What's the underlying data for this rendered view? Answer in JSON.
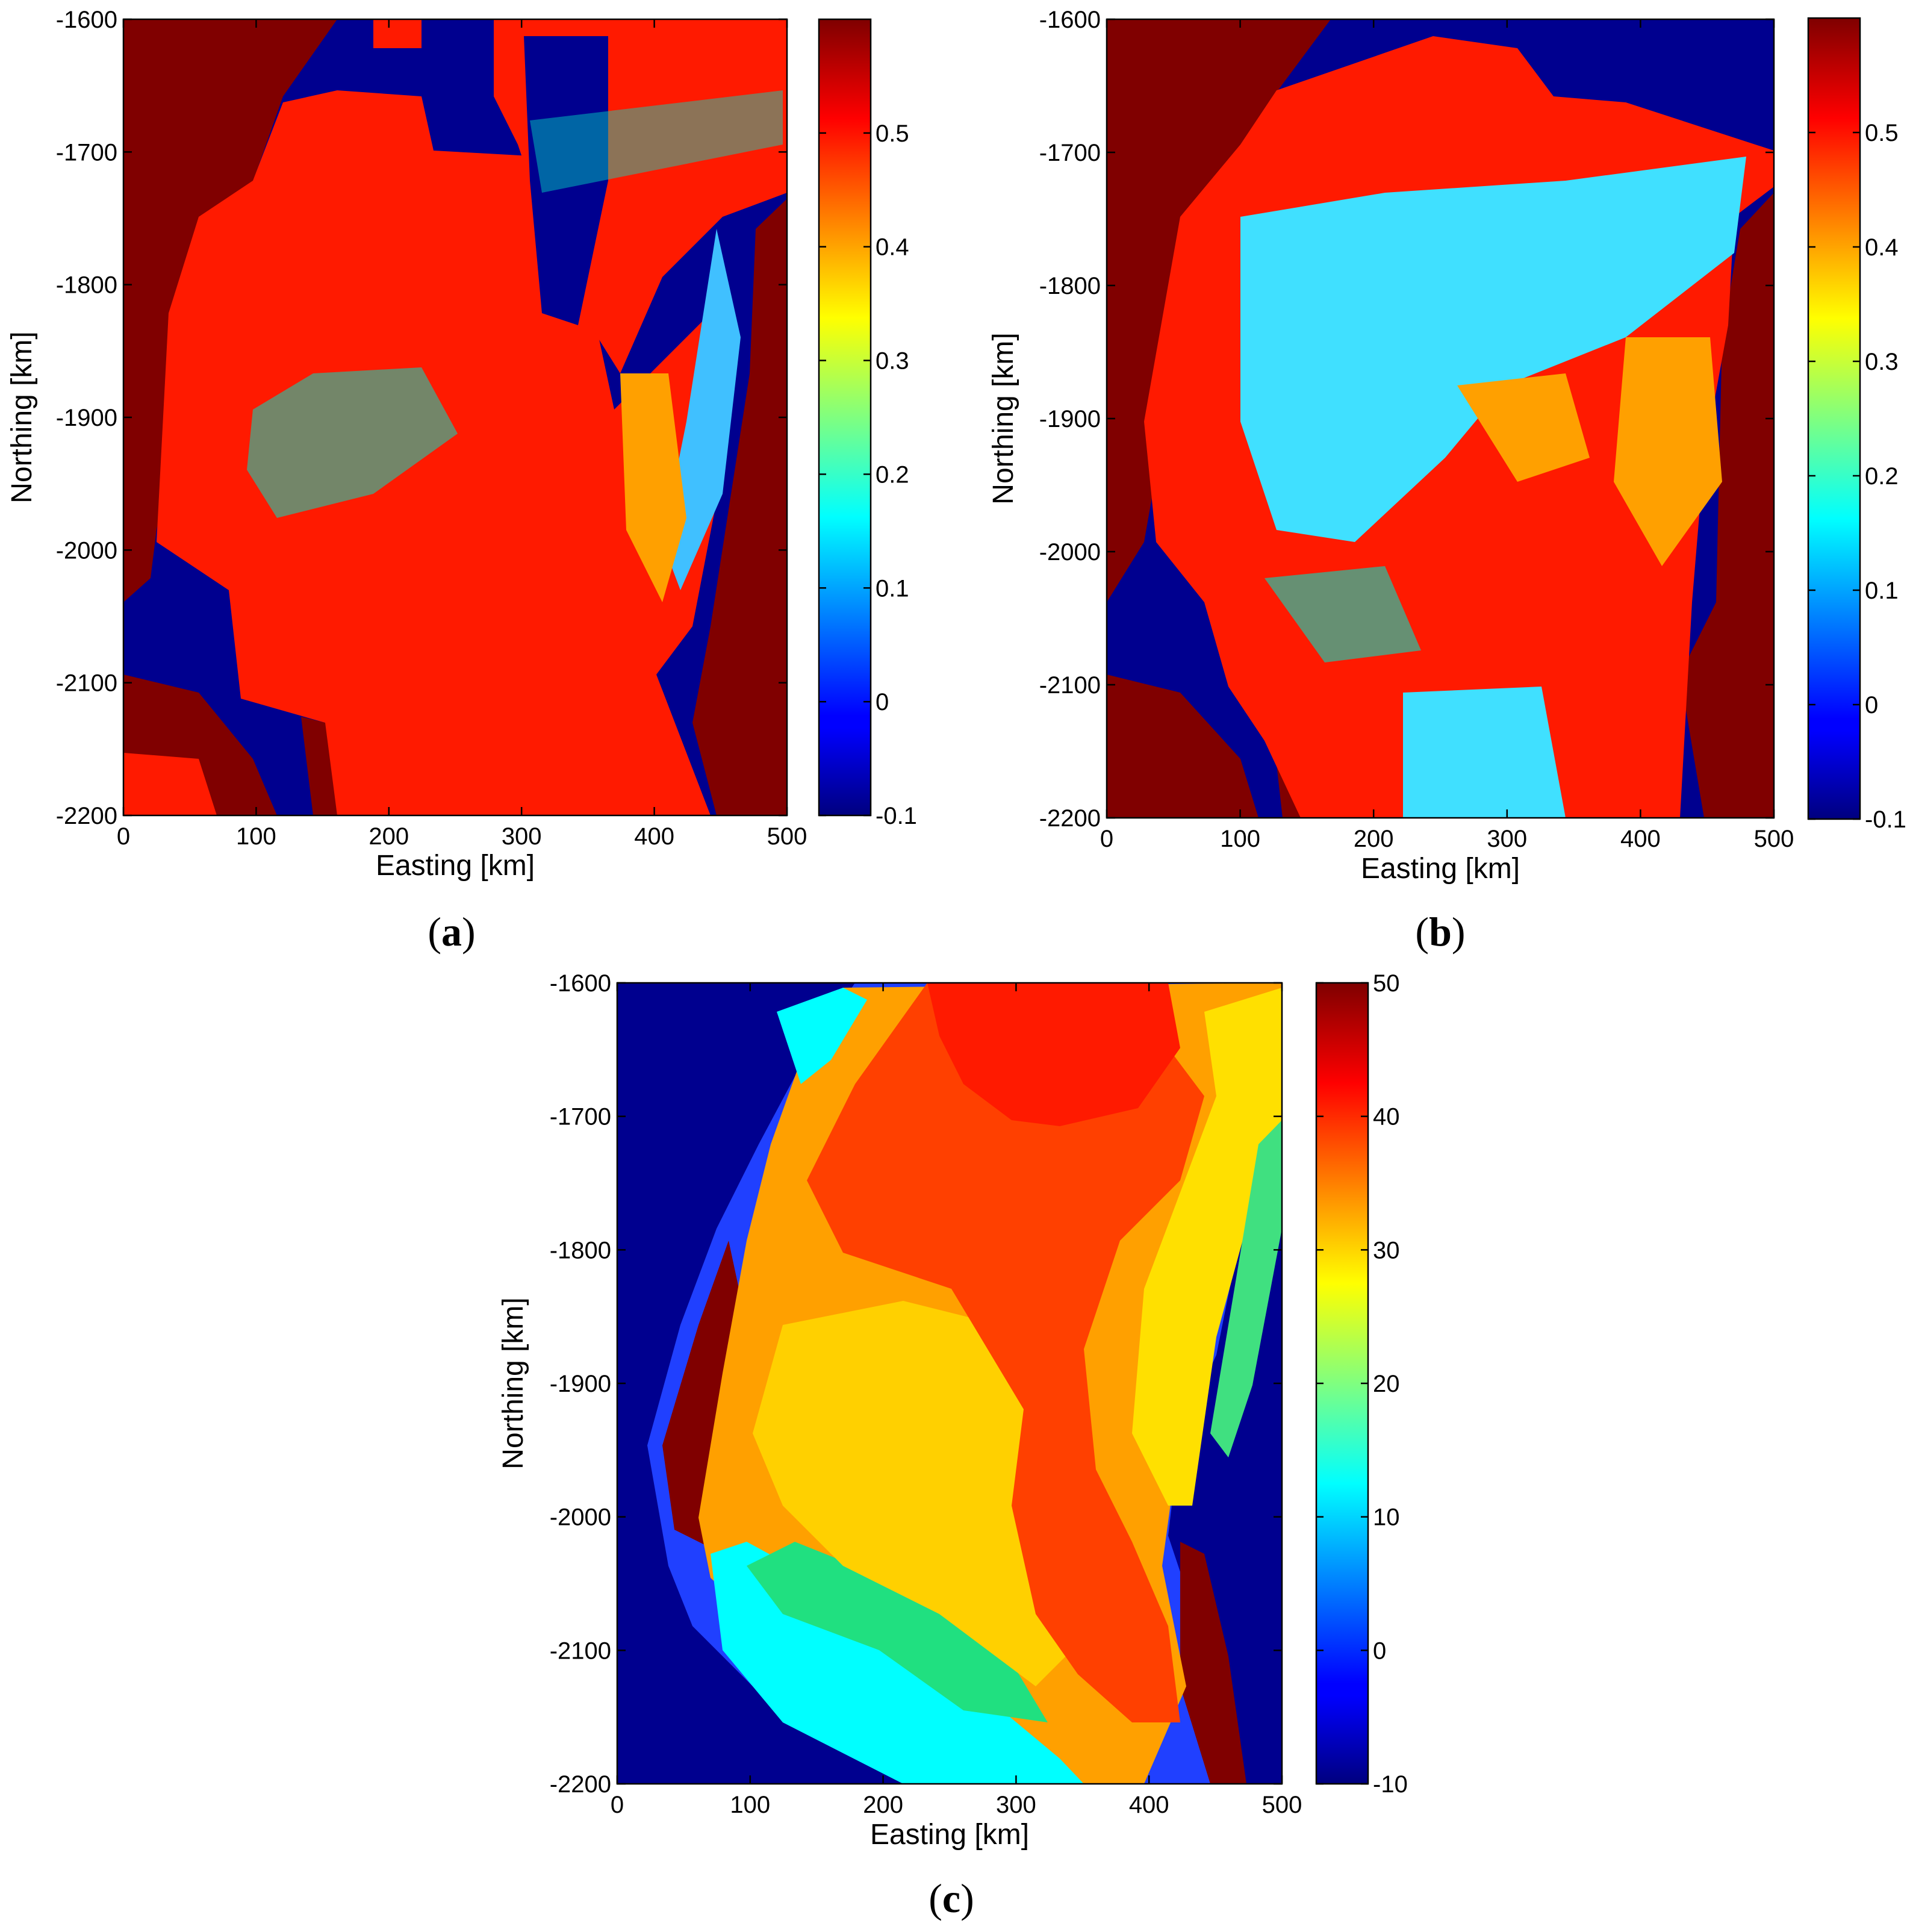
{
  "chart_data": [
    {
      "type": "heatmap",
      "panel_label": {
        "open": "(",
        "letter": "a",
        "close": ")"
      },
      "xlabel": "Easting [km]",
      "ylabel": "Northing [km]",
      "xlim": [
        0,
        500
      ],
      "ylim": [
        -2200,
        -1600
      ],
      "xticks": [
        "0",
        "100",
        "200",
        "300",
        "400",
        "500"
      ],
      "yticks": [
        "-1600",
        "-1700",
        "-1800",
        "-1900",
        "-2000",
        "-2100",
        "-2200"
      ],
      "colorbar": {
        "range": [
          -0.1,
          0.6
        ],
        "ticks": [
          "0.5",
          "0.4",
          "0.3",
          "0.2",
          "0.1",
          "0",
          "-0.1"
        ],
        "tick_values": [
          0.5,
          0.4,
          0.3,
          0.2,
          0.1,
          0,
          -0.1
        ],
        "colormap": "jet"
      }
    },
    {
      "type": "heatmap",
      "panel_label": {
        "open": "(",
        "letter": "b",
        "close": ")"
      },
      "xlabel": "Easting [km]",
      "ylabel": "Northing [km]",
      "xlim": [
        0,
        500
      ],
      "ylim": [
        -2200,
        -1600
      ],
      "xticks": [
        "0",
        "100",
        "200",
        "300",
        "400",
        "500"
      ],
      "yticks": [
        "-1600",
        "-1700",
        "-1800",
        "-1900",
        "-2000",
        "-2100",
        "-2200"
      ],
      "colorbar": {
        "range": [
          -0.1,
          0.6
        ],
        "ticks": [
          "0.5",
          "0.4",
          "0.3",
          "0.2",
          "0.1",
          "0",
          "-0.1"
        ],
        "tick_values": [
          0.5,
          0.4,
          0.3,
          0.2,
          0.1,
          0,
          -0.1
        ],
        "colormap": "jet"
      }
    },
    {
      "type": "heatmap",
      "panel_label": {
        "open": "(",
        "letter": "c",
        "close": ")"
      },
      "xlabel": "Easting [km]",
      "ylabel": "Northing [km]",
      "xlim": [
        0,
        500
      ],
      "ylim": [
        -2200,
        -1600
      ],
      "xticks": [
        "0",
        "100",
        "200",
        "300",
        "400",
        "500"
      ],
      "yticks": [
        "-1600",
        "-1700",
        "-1800",
        "-1900",
        "-2000",
        "-2100",
        "-2200"
      ],
      "colorbar": {
        "range": [
          -10,
          50
        ],
        "ticks": [
          "50",
          "40",
          "30",
          "20",
          "10",
          "0",
          "-10"
        ],
        "tick_values": [
          50,
          40,
          30,
          20,
          10,
          0,
          -10
        ],
        "colormap": "jet"
      }
    }
  ],
  "colors": {
    "ocean": "#00008f",
    "land": "#800000",
    "red": "#ff1a00",
    "orange": "#ffa000",
    "yellow": "#ffe000",
    "cyan": "#00ffff",
    "lightblue": "#40c0ff",
    "green": "#20e080"
  }
}
